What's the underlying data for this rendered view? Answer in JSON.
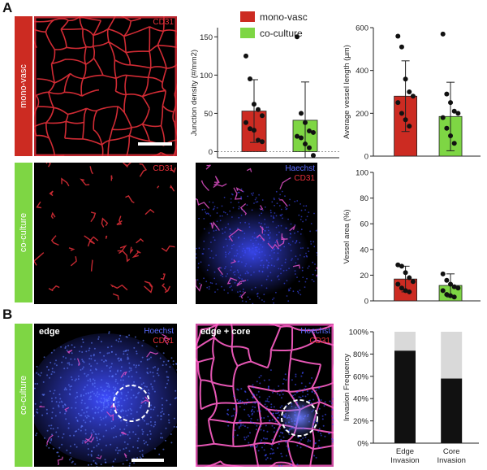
{
  "panel_labels": {
    "a": "A",
    "b": "B"
  },
  "side_labels": {
    "mono": "mono-vasc",
    "co_a": "co-culture",
    "co_b": "co-culture"
  },
  "colors": {
    "mono": "#cc2b22",
    "co": "#7ed644",
    "invaded": "#111111",
    "not_invaded": "#d9d9d9",
    "cd31": "#e8303a",
    "hoechst": "#3d4cff"
  },
  "micrographs": {
    "mono_cd31": {
      "label1": "CD31"
    },
    "co_cd31": {
      "label1": "CD31"
    },
    "co_merge": {
      "label1": "Haechst",
      "label2": "CD31"
    },
    "edge": {
      "title": "edge",
      "label1": "Hoechst",
      "label2": "CD31"
    },
    "edge_core": {
      "title": "edge + core",
      "label1": "Hoechst",
      "label2": "CD31"
    }
  },
  "legend": {
    "mono": "mono-vasc",
    "co": "co-culture"
  },
  "chart_data": [
    {
      "id": "junction",
      "type": "bar",
      "categories": [
        "mono-vasc",
        "co-culture"
      ],
      "values": [
        53,
        41
      ],
      "errors": [
        41,
        50
      ],
      "points": [
        [
          125,
          95,
          62,
          55,
          47,
          38,
          30,
          28,
          15,
          13
        ],
        [
          150,
          50,
          38,
          27,
          25,
          20,
          18,
          10,
          5,
          -5
        ]
      ],
      "ylabel": "Junction density (#/mm2)",
      "yticks": [
        0,
        50,
        100,
        150
      ],
      "ylim": [
        -8,
        162
      ]
    },
    {
      "id": "length",
      "type": "bar",
      "categories": [
        "mono-vasc",
        "co-culture"
      ],
      "values": [
        280,
        185
      ],
      "errors": [
        165,
        160
      ],
      "points": [
        [
          560,
          510,
          360,
          300,
          280,
          250,
          200,
          170,
          140
        ],
        [
          570,
          290,
          250,
          210,
          200,
          180,
          130,
          95,
          60
        ]
      ],
      "ylabel": "Average vessel length (µm)",
      "yticks": [
        0,
        200,
        400,
        600
      ],
      "ylim": [
        0,
        600
      ]
    },
    {
      "id": "area",
      "type": "bar",
      "categories": [
        "mono-vasc",
        "co-culture"
      ],
      "values": [
        17,
        12
      ],
      "errors": [
        10,
        9
      ],
      "points": [
        [
          28,
          27,
          22,
          18,
          15,
          13,
          10,
          8,
          7
        ],
        [
          21,
          16,
          13,
          11,
          10,
          8,
          5,
          4,
          3
        ]
      ],
      "ylabel": "Vessel area (%)",
      "yticks": [
        0,
        20,
        40,
        60,
        80,
        100
      ],
      "ylim": [
        0,
        100
      ]
    },
    {
      "id": "invasion",
      "type": "bar",
      "categories": [
        "Edge\nInvasion",
        "Core\nInvasion"
      ],
      "values": [
        83,
        58
      ],
      "ylabel": "Invasion Frequency",
      "yticks": [
        "0%",
        "20%",
        "40%",
        "60%",
        "80%",
        "100%"
      ],
      "ylim": [
        0,
        100
      ]
    }
  ]
}
